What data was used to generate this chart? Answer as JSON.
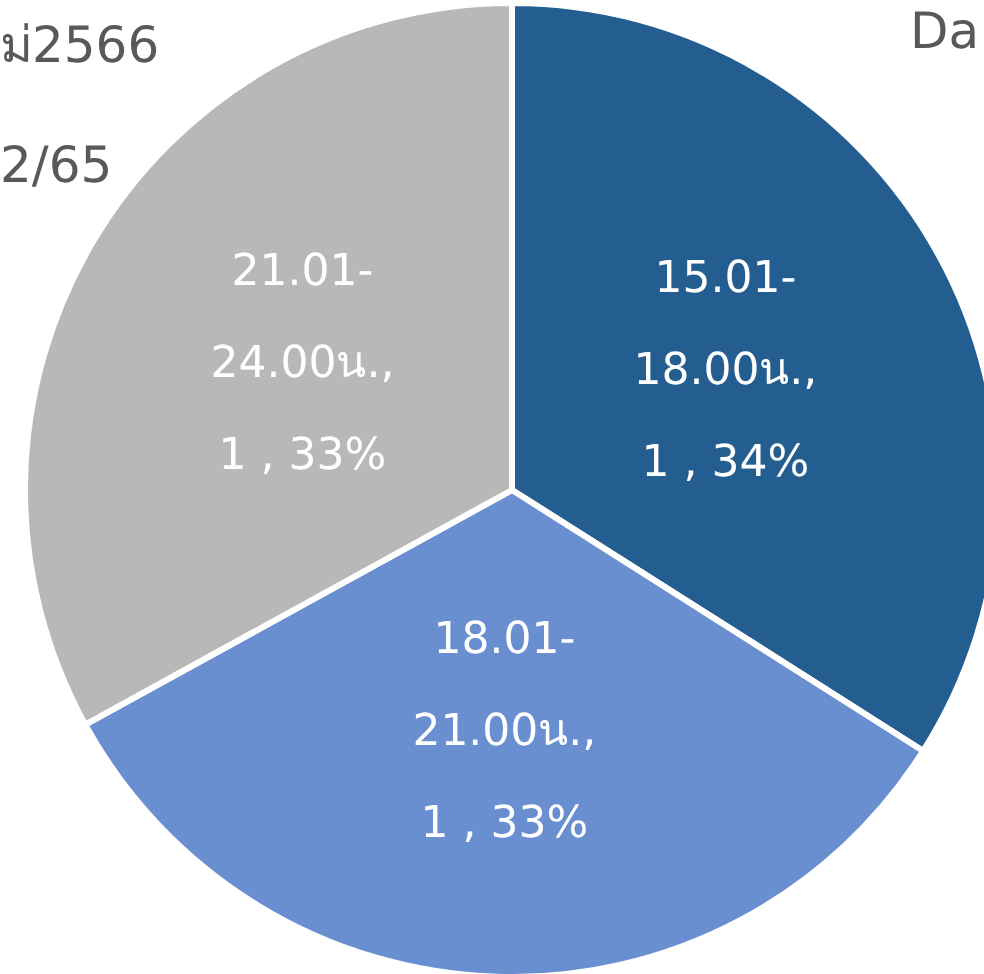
{
  "chart_data": {
    "type": "pie",
    "categories": [
      "15.01-18.00น.",
      "18.01-21.00น.",
      "21.01-24.00น."
    ],
    "values": [
      34,
      33,
      33
    ],
    "colors": [
      "#245e91",
      "#6a8fd0",
      "#b8b8b8"
    ],
    "value_labels": [
      ", 1 , 34%",
      ", 1 , 33%",
      ", 1 , 33%"
    ],
    "annotations": [
      "ม่2566",
      "2/65",
      "Da"
    ]
  }
}
